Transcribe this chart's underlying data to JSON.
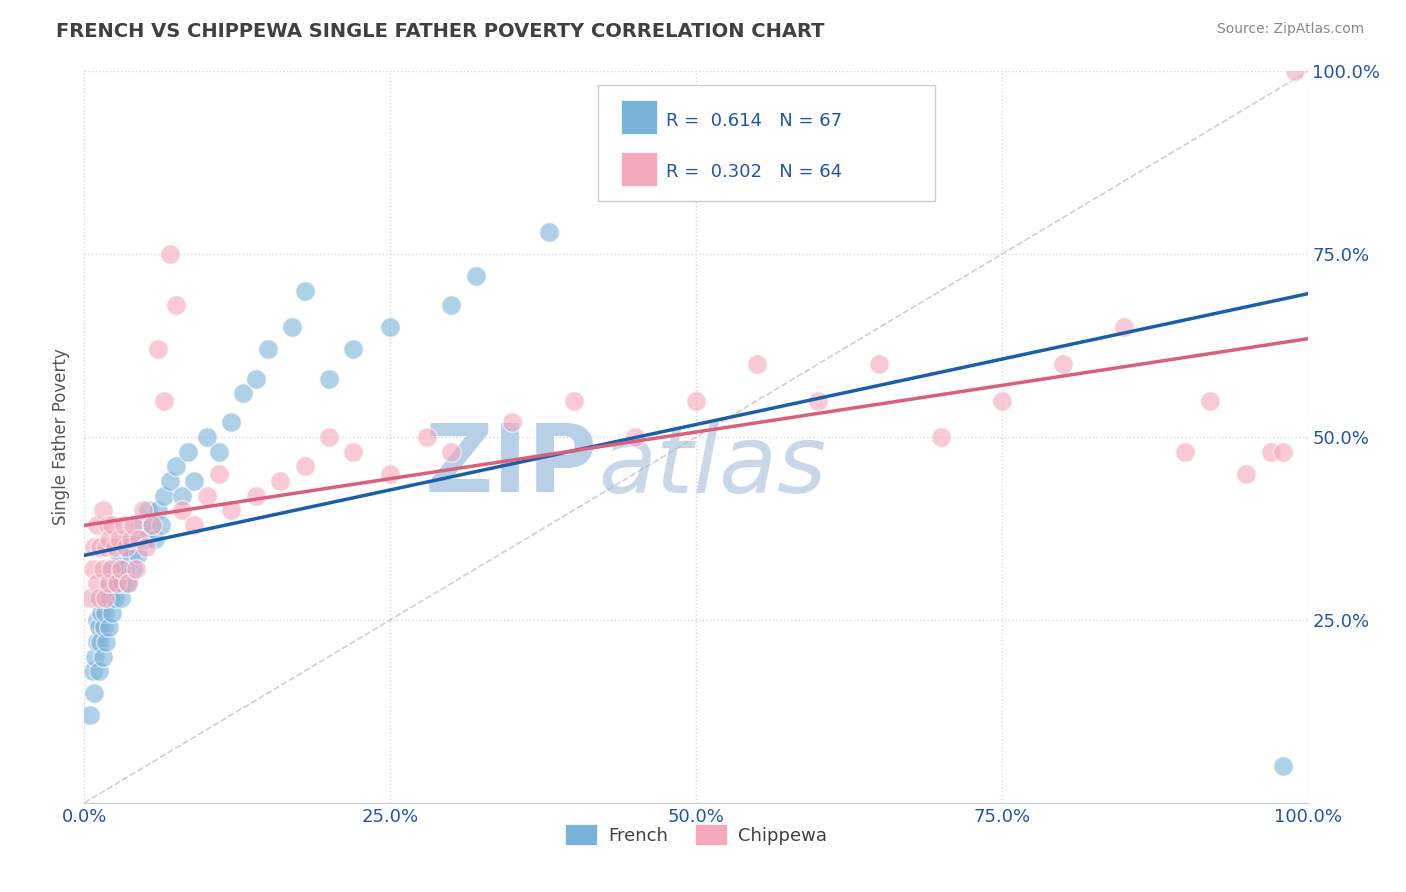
{
  "title": "FRENCH VS CHIPPEWA SINGLE FATHER POVERTY CORRELATION CHART",
  "source": "Source: ZipAtlas.com",
  "ylabel": "Single Father Poverty",
  "xlim": [
    0.0,
    1.0
  ],
  "ylim": [
    0.0,
    1.0
  ],
  "french_R": 0.614,
  "french_N": 67,
  "chippewa_R": 0.302,
  "chippewa_N": 64,
  "french_color": "#7ab3d9",
  "chippewa_color": "#f5a8bc",
  "french_line_color": "#1a5fa8",
  "chippewa_line_color": "#d9607a",
  "legend_text_color": "#2255aa",
  "watermark_zi_color": "#b8cfe8",
  "watermark_atlas_color": "#c8d8e8",
  "background_color": "#ffffff",
  "grid_color": "#d0d8e8",
  "title_color": "#404040",
  "source_color": "#888888",
  "tick_label_color": "#2255aa",
  "ylabel_color": "#555555",
  "bottom_legend_color": "#404040",
  "french_x": [
    0.005,
    0.007,
    0.008,
    0.009,
    0.01,
    0.01,
    0.01,
    0.012,
    0.012,
    0.013,
    0.014,
    0.015,
    0.015,
    0.016,
    0.017,
    0.018,
    0.018,
    0.019,
    0.02,
    0.02,
    0.021,
    0.022,
    0.023,
    0.024,
    0.025,
    0.026,
    0.027,
    0.028,
    0.03,
    0.03,
    0.031,
    0.032,
    0.033,
    0.035,
    0.036,
    0.038,
    0.04,
    0.042,
    0.044,
    0.046,
    0.05,
    0.052,
    0.055,
    0.058,
    0.06,
    0.063,
    0.065,
    0.07,
    0.075,
    0.08,
    0.085,
    0.09,
    0.1,
    0.11,
    0.12,
    0.13,
    0.14,
    0.15,
    0.17,
    0.18,
    0.2,
    0.22,
    0.25,
    0.3,
    0.32,
    0.38,
    0.98
  ],
  "french_y": [
    0.12,
    0.18,
    0.15,
    0.2,
    0.22,
    0.25,
    0.28,
    0.18,
    0.24,
    0.22,
    0.26,
    0.2,
    0.28,
    0.24,
    0.26,
    0.22,
    0.28,
    0.3,
    0.24,
    0.3,
    0.28,
    0.32,
    0.26,
    0.3,
    0.28,
    0.32,
    0.3,
    0.34,
    0.28,
    0.32,
    0.3,
    0.35,
    0.32,
    0.36,
    0.3,
    0.34,
    0.32,
    0.36,
    0.34,
    0.38,
    0.36,
    0.4,
    0.38,
    0.36,
    0.4,
    0.38,
    0.42,
    0.44,
    0.46,
    0.42,
    0.48,
    0.44,
    0.5,
    0.48,
    0.52,
    0.56,
    0.58,
    0.62,
    0.65,
    0.7,
    0.58,
    0.62,
    0.65,
    0.68,
    0.72,
    0.78,
    0.05
  ],
  "chippewa_x": [
    0.005,
    0.007,
    0.008,
    0.01,
    0.01,
    0.012,
    0.013,
    0.015,
    0.015,
    0.017,
    0.018,
    0.019,
    0.02,
    0.02,
    0.022,
    0.023,
    0.025,
    0.027,
    0.028,
    0.03,
    0.032,
    0.034,
    0.036,
    0.038,
    0.04,
    0.042,
    0.045,
    0.048,
    0.05,
    0.055,
    0.06,
    0.065,
    0.07,
    0.075,
    0.08,
    0.09,
    0.1,
    0.11,
    0.12,
    0.14,
    0.16,
    0.18,
    0.2,
    0.22,
    0.25,
    0.28,
    0.3,
    0.35,
    0.4,
    0.45,
    0.5,
    0.55,
    0.6,
    0.65,
    0.7,
    0.75,
    0.8,
    0.85,
    0.9,
    0.92,
    0.95,
    0.97,
    0.98,
    0.99
  ],
  "chippewa_y": [
    0.28,
    0.32,
    0.35,
    0.3,
    0.38,
    0.28,
    0.35,
    0.32,
    0.4,
    0.28,
    0.35,
    0.38,
    0.3,
    0.36,
    0.32,
    0.38,
    0.35,
    0.3,
    0.36,
    0.32,
    0.38,
    0.35,
    0.3,
    0.36,
    0.38,
    0.32,
    0.36,
    0.4,
    0.35,
    0.38,
    0.62,
    0.55,
    0.75,
    0.68,
    0.4,
    0.38,
    0.42,
    0.45,
    0.4,
    0.42,
    0.44,
    0.46,
    0.5,
    0.48,
    0.45,
    0.5,
    0.48,
    0.52,
    0.55,
    0.5,
    0.55,
    0.6,
    0.55,
    0.6,
    0.5,
    0.55,
    0.6,
    0.65,
    0.48,
    0.55,
    0.45,
    0.48,
    0.48,
    1.0
  ]
}
